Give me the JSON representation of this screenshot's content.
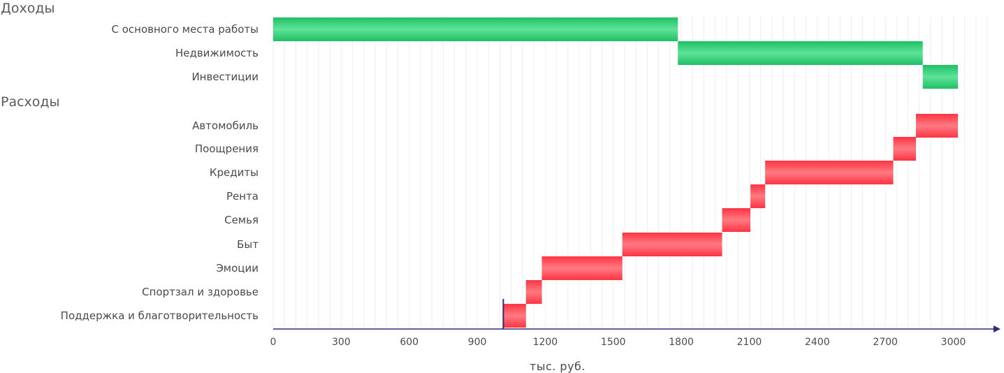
{
  "chart_data": {
    "type": "bar",
    "subtype": "waterfall-horizontal",
    "xlabel": "тыс. руб.",
    "xlim": [
      0,
      3200
    ],
    "x_ticks": [
      0,
      300,
      600,
      900,
      1200,
      1500,
      1800,
      2100,
      2400,
      2700,
      3000
    ],
    "grid": true,
    "reference_line_x": 1015,
    "colors": {
      "income": "#22c46a",
      "expense": "#ff3d4a",
      "axis": "#2f2a7a",
      "grid": "#eeeeee"
    },
    "sections": [
      {
        "title": "Доходы",
        "kind": "income",
        "items": [
          {
            "label": "С основного места работы",
            "start": 0,
            "end": 1785
          },
          {
            "label": "Недвижимость",
            "start": 1785,
            "end": 2865
          },
          {
            "label": "Инвестиции",
            "start": 2865,
            "end": 3020
          }
        ]
      },
      {
        "title": "Расходы",
        "kind": "expense",
        "items": [
          {
            "label": "Автомобиль",
            "start": 2835,
            "end": 3020
          },
          {
            "label": "Поощрения",
            "start": 2735,
            "end": 2835
          },
          {
            "label": "Кредиты",
            "start": 2170,
            "end": 2735
          },
          {
            "label": "Рента",
            "start": 2105,
            "end": 2170
          },
          {
            "label": "Семья",
            "start": 1980,
            "end": 2105
          },
          {
            "label": "Быт",
            "start": 1540,
            "end": 1980
          },
          {
            "label": "Эмоции",
            "start": 1185,
            "end": 1540
          },
          {
            "label": "Спортзал и здоровье",
            "start": 1115,
            "end": 1185
          },
          {
            "label": "Поддержка и благотворительность",
            "start": 1015,
            "end": 1115
          }
        ]
      }
    ]
  }
}
